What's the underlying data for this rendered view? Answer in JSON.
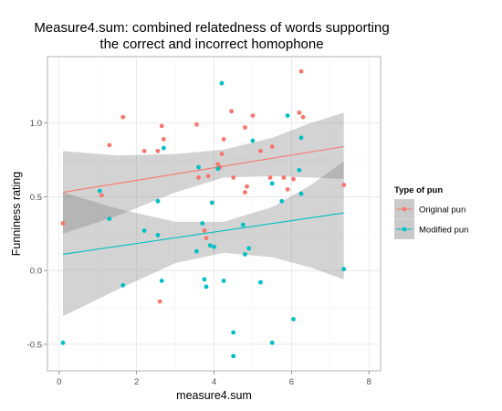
{
  "chart_data": {
    "type": "scatter",
    "title_line1": "Measure4.sum: combined relatedness of words supporting",
    "title_line2": "the correct and incorrect homophone",
    "xlabel": "measure4.sum",
    "ylabel": "Funniness rating",
    "xlim": [
      -0.3,
      8.3
    ],
    "ylim": [
      -0.68,
      1.45
    ],
    "x_ticks": [
      0,
      2,
      4,
      6,
      8
    ],
    "x_tick_labels": [
      "0",
      "2",
      "4",
      "6",
      "8"
    ],
    "y_ticks": [
      -0.5,
      0.0,
      0.5,
      1.0
    ],
    "y_tick_labels": [
      "-0.5",
      "0.0",
      "0.5",
      "1.0"
    ],
    "grid": true,
    "legend": {
      "title": "Type of pun",
      "position": "right"
    },
    "series": [
      {
        "name": "Original pun",
        "color": "#F8766D",
        "points": [
          [
            0.1,
            0.32
          ],
          [
            1.1,
            0.51
          ],
          [
            1.3,
            0.85
          ],
          [
            1.65,
            1.04
          ],
          [
            2.2,
            0.81
          ],
          [
            2.55,
            0.81
          ],
          [
            2.6,
            -0.21
          ],
          [
            2.65,
            0.98
          ],
          [
            2.7,
            0.89
          ],
          [
            3.55,
            0.99
          ],
          [
            3.6,
            0.63
          ],
          [
            3.75,
            0.27
          ],
          [
            3.8,
            0.22
          ],
          [
            3.85,
            0.64
          ],
          [
            3.95,
            0.46
          ],
          [
            4.1,
            0.72
          ],
          [
            4.15,
            0.7
          ],
          [
            4.2,
            0.79
          ],
          [
            4.25,
            0.89
          ],
          [
            4.45,
            1.08
          ],
          [
            4.5,
            0.63
          ],
          [
            4.8,
            0.97
          ],
          [
            4.8,
            0.53
          ],
          [
            4.85,
            0.57
          ],
          [
            5.0,
            1.05
          ],
          [
            5.2,
            0.81
          ],
          [
            5.45,
            0.63
          ],
          [
            5.5,
            0.84
          ],
          [
            5.8,
            0.63
          ],
          [
            5.9,
            0.55
          ],
          [
            6.05,
            0.62
          ],
          [
            6.2,
            1.07
          ],
          [
            6.25,
            1.35
          ],
          [
            6.3,
            1.04
          ],
          [
            7.35,
            0.58
          ]
        ],
        "fit_line": [
          [
            0.1,
            0.53
          ],
          [
            7.35,
            0.84
          ]
        ],
        "band_upper": [
          [
            0.1,
            0.81
          ],
          [
            1.5,
            0.78
          ],
          [
            3.0,
            0.79
          ],
          [
            4.25,
            0.82
          ],
          [
            5.5,
            0.9
          ],
          [
            6.5,
            1.0
          ],
          [
            7.35,
            1.07
          ]
        ],
        "band_lower": [
          [
            0.1,
            0.25
          ],
          [
            1.5,
            0.37
          ],
          [
            3.0,
            0.53
          ],
          [
            4.25,
            0.63
          ],
          [
            5.5,
            0.64
          ],
          [
            6.5,
            0.63
          ],
          [
            7.35,
            0.62
          ]
        ]
      },
      {
        "name": "Modified pun",
        "color": "#00BFC4",
        "points": [
          [
            0.1,
            -0.49
          ],
          [
            1.05,
            0.54
          ],
          [
            1.3,
            0.35
          ],
          [
            1.65,
            -0.1
          ],
          [
            2.2,
            0.27
          ],
          [
            2.55,
            0.47
          ],
          [
            2.55,
            0.24
          ],
          [
            2.65,
            -0.07
          ],
          [
            2.7,
            0.83
          ],
          [
            3.55,
            0.13
          ],
          [
            3.6,
            0.7
          ],
          [
            3.7,
            0.32
          ],
          [
            3.75,
            -0.06
          ],
          [
            3.8,
            -0.11
          ],
          [
            3.9,
            0.17
          ],
          [
            3.95,
            0.46
          ],
          [
            4.0,
            0.16
          ],
          [
            4.1,
            0.69
          ],
          [
            4.2,
            1.27
          ],
          [
            4.25,
            -0.07
          ],
          [
            4.5,
            -0.58
          ],
          [
            4.5,
            -0.42
          ],
          [
            4.75,
            0.31
          ],
          [
            4.8,
            0.11
          ],
          [
            4.9,
            0.15
          ],
          [
            5.0,
            0.88
          ],
          [
            5.2,
            -0.08
          ],
          [
            5.5,
            -0.49
          ],
          [
            5.5,
            0.59
          ],
          [
            5.75,
            0.47
          ],
          [
            5.9,
            1.05
          ],
          [
            6.05,
            -0.33
          ],
          [
            6.2,
            0.68
          ],
          [
            6.25,
            0.9
          ],
          [
            6.25,
            0.52
          ],
          [
            7.35,
            0.01
          ]
        ],
        "fit_line": [
          [
            0.1,
            0.11
          ],
          [
            7.35,
            0.39
          ]
        ],
        "band_upper": [
          [
            0.1,
            0.53
          ],
          [
            1.5,
            0.42
          ],
          [
            3.0,
            0.33
          ],
          [
            4.25,
            0.33
          ],
          [
            5.5,
            0.43
          ],
          [
            6.5,
            0.58
          ],
          [
            7.35,
            0.74
          ]
        ],
        "band_lower": [
          [
            0.1,
            -0.31
          ],
          [
            1.5,
            -0.13
          ],
          [
            3.0,
            0.05
          ],
          [
            4.25,
            0.12
          ],
          [
            5.5,
            0.09
          ],
          [
            6.5,
            0.02
          ],
          [
            7.35,
            -0.06
          ]
        ]
      }
    ]
  }
}
